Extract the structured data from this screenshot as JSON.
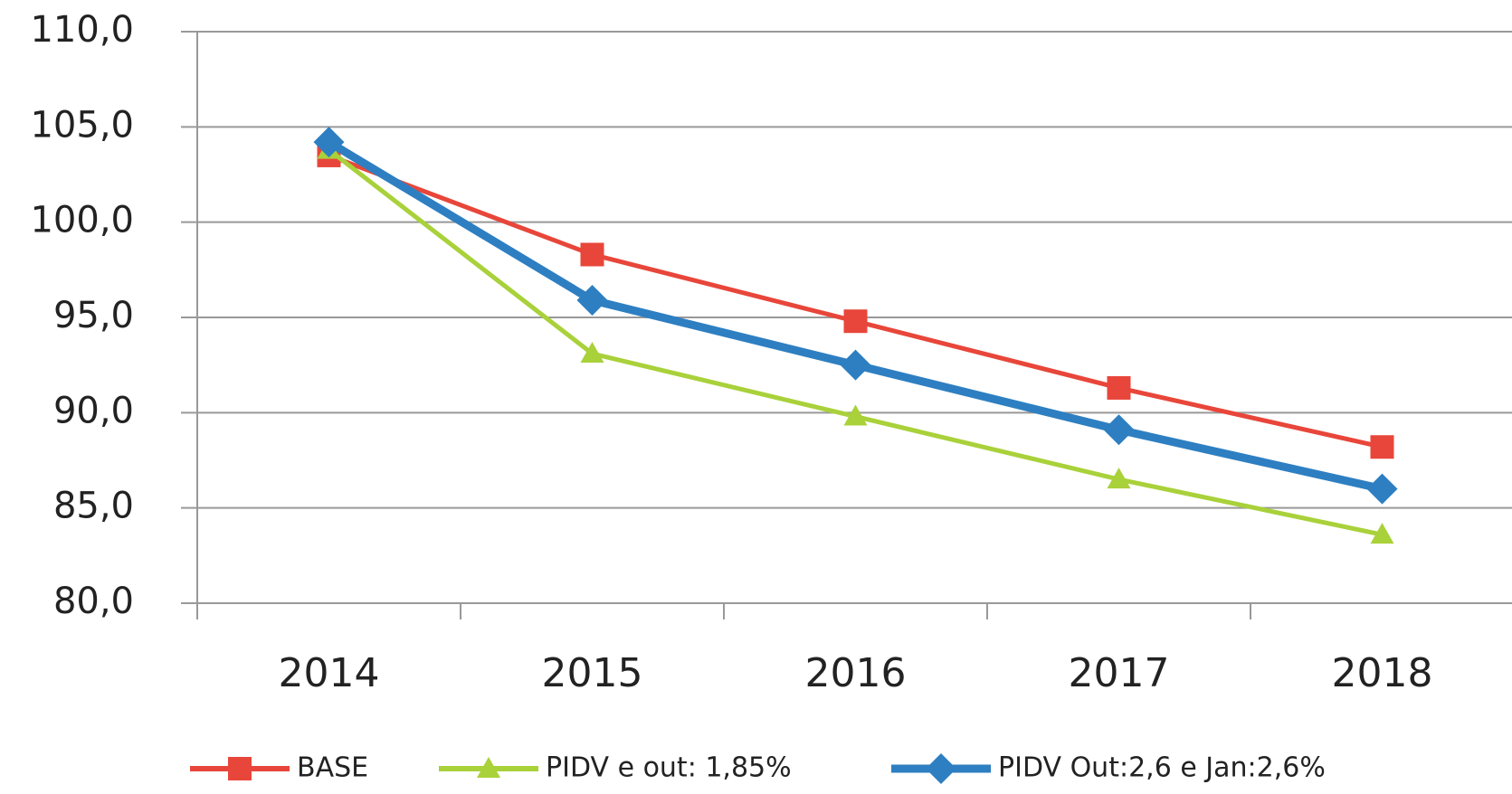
{
  "chart_data": {
    "type": "line",
    "categories": [
      "2014",
      "2015",
      "2016",
      "2017",
      "2018"
    ],
    "series": [
      {
        "name": "BASE",
        "color": "#e8463a",
        "marker": "square",
        "values": [
          103.5,
          98.3,
          94.8,
          91.3,
          88.2
        ]
      },
      {
        "name": "PIDV e out: 1,85%",
        "color": "#a9d13a",
        "marker": "triangle",
        "values": [
          103.8,
          93.1,
          89.8,
          86.5,
          83.6
        ]
      },
      {
        "name": "PIDV Out:2,6 e Jan:2,6%",
        "color": "#2e7fc1",
        "marker": "diamond",
        "values": [
          104.2,
          95.9,
          92.5,
          89.1,
          86.0
        ]
      }
    ],
    "ylim": [
      80,
      110
    ],
    "yticks": [
      {
        "value": 80,
        "label": "80,0"
      },
      {
        "value": 85,
        "label": "85,0"
      },
      {
        "value": 90,
        "label": "90,0"
      },
      {
        "value": 95,
        "label": "95,0"
      },
      {
        "value": 100,
        "label": "100,0"
      },
      {
        "value": 105,
        "label": "105,0"
      },
      {
        "value": 110,
        "label": "110,0"
      }
    ],
    "grid": true,
    "legend": "bottom"
  }
}
